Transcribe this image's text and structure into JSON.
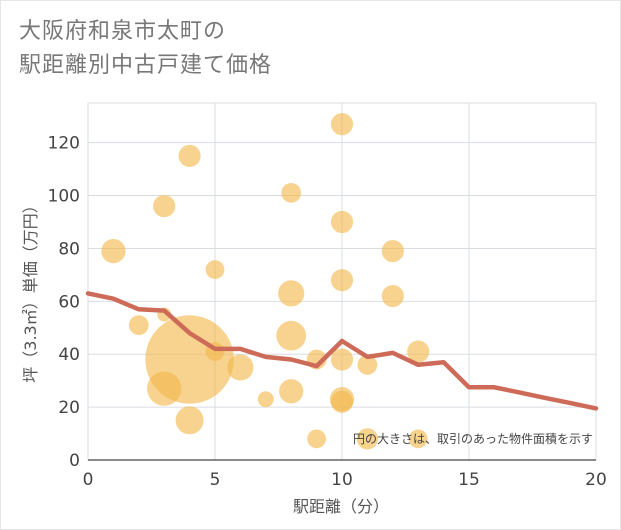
{
  "title": {
    "line1": "大阪府和泉市太町の",
    "line2": "駅距離別中古戸建て価格"
  },
  "note": "円の大きさは、取引のあった物件面積を示す",
  "colors": {
    "bubble": "#f2b84b",
    "line": "#cd6b58",
    "grid": "#d9dde2",
    "axis": "#444444"
  },
  "chart_data": {
    "type": "scatter",
    "title": "大阪府和泉市太町の駅距離別中古戸建て価格",
    "xlabel": "駅距離（分）",
    "ylabel": "坪（3.3㎡）単価（万円）",
    "xlim": [
      0,
      20
    ],
    "ylim": [
      0,
      135
    ],
    "xticks": [
      0,
      5,
      10,
      15,
      20
    ],
    "yticks": [
      0,
      20,
      40,
      60,
      80,
      100,
      120
    ],
    "grid": true,
    "bubbles": [
      {
        "x": 1,
        "y": 79,
        "size": 3
      },
      {
        "x": 2,
        "y": 51,
        "size": 2
      },
      {
        "x": 3,
        "y": 96,
        "size": 2.5
      },
      {
        "x": 3,
        "y": 55,
        "size": 1
      },
      {
        "x": 3,
        "y": 27,
        "size": 6
      },
      {
        "x": 4,
        "y": 115,
        "size": 2.5
      },
      {
        "x": 4,
        "y": 38,
        "size": 40
      },
      {
        "x": 4,
        "y": 15,
        "size": 4
      },
      {
        "x": 5,
        "y": 72,
        "size": 1.8
      },
      {
        "x": 5,
        "y": 41,
        "size": 1.8
      },
      {
        "x": 6,
        "y": 35,
        "size": 3.5
      },
      {
        "x": 7,
        "y": 23,
        "size": 1.3
      },
      {
        "x": 8,
        "y": 101,
        "size": 2
      },
      {
        "x": 8,
        "y": 63,
        "size": 3.5
      },
      {
        "x": 8,
        "y": 47,
        "size": 4.5
      },
      {
        "x": 8,
        "y": 26,
        "size": 3
      },
      {
        "x": 9,
        "y": 38,
        "size": 2
      },
      {
        "x": 9,
        "y": 8,
        "size": 1.8
      },
      {
        "x": 10,
        "y": 127,
        "size": 2.5
      },
      {
        "x": 10,
        "y": 90,
        "size": 2.5
      },
      {
        "x": 10,
        "y": 68,
        "size": 2.5
      },
      {
        "x": 10,
        "y": 38,
        "size": 2.5
      },
      {
        "x": 10,
        "y": 23,
        "size": 3
      },
      {
        "x": 10,
        "y": 22,
        "size": 2.5
      },
      {
        "x": 11,
        "y": 36,
        "size": 2
      },
      {
        "x": 11,
        "y": 8,
        "size": 2.3
      },
      {
        "x": 12,
        "y": 79,
        "size": 2.5
      },
      {
        "x": 12,
        "y": 62,
        "size": 2.5
      },
      {
        "x": 13,
        "y": 41,
        "size": 2.5
      },
      {
        "x": 13,
        "y": 8,
        "size": 1.8
      }
    ],
    "trend": {
      "x": [
        0,
        1,
        2,
        3,
        4,
        5,
        6,
        7,
        8,
        9,
        10,
        11,
        12,
        13,
        14,
        15,
        16,
        17,
        18,
        19,
        20
      ],
      "y": [
        63,
        61,
        57,
        56.5,
        48,
        42,
        42,
        39,
        38,
        35.5,
        45,
        39,
        40.5,
        36,
        37,
        27.5,
        27.5,
        25.5,
        23.5,
        21.5,
        19.5
      ]
    }
  }
}
